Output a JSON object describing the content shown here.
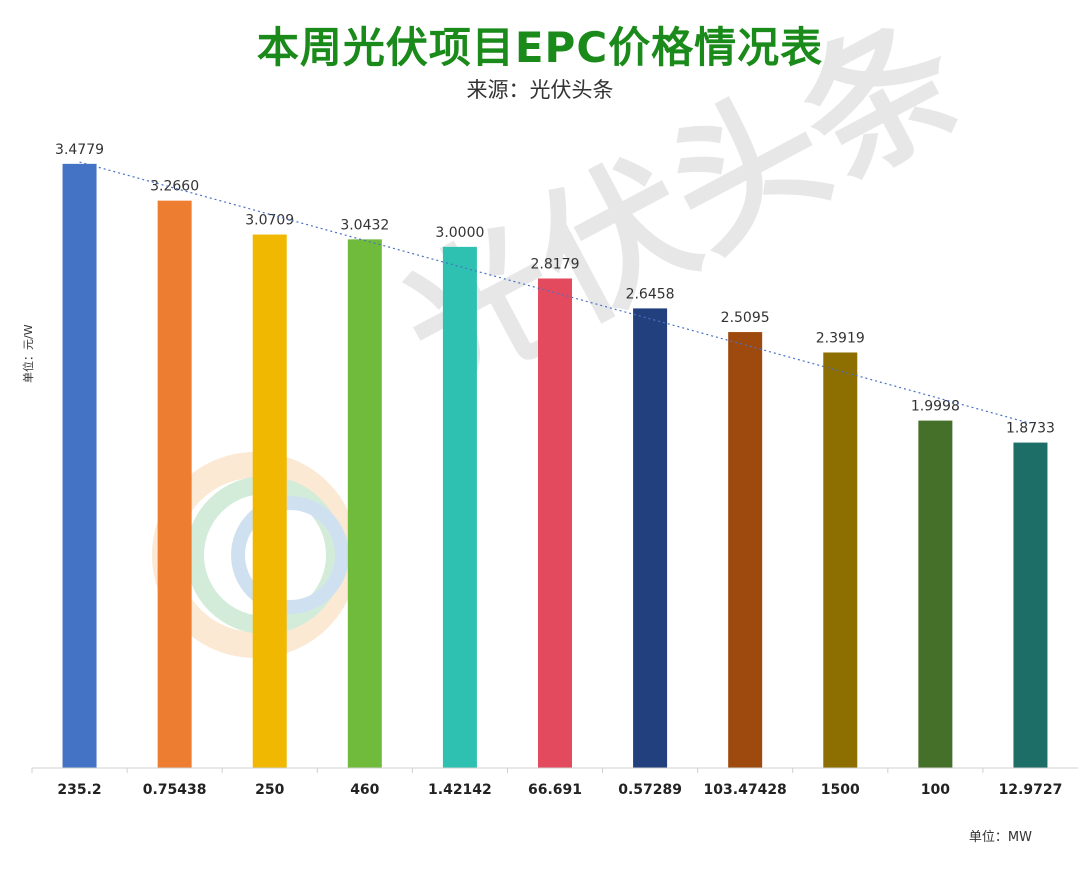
{
  "title": "本周光伏项目EPC价格情况表",
  "subtitle": "来源：光伏头条",
  "ylabel": "单位：元/W",
  "unit_label": "单位：MW",
  "watermark": "光伏头条",
  "colors": {
    "title": "#1a8a1a",
    "trendline": "#4a72c4",
    "axis": "#d0d0d0"
  },
  "chart_data": {
    "type": "bar",
    "title": "本周光伏项目EPC价格情况表",
    "categories": [
      "235.2",
      "0.75438",
      "250",
      "460",
      "1.42142",
      "66.691",
      "0.57289",
      "103.47428",
      "1500",
      "100",
      "12.9727"
    ],
    "values": [
      3.4779,
      3.266,
      3.0709,
      3.0432,
      3.0,
      2.8179,
      2.6458,
      2.5095,
      2.3919,
      1.9998,
      1.8733
    ],
    "data_labels": [
      "3.4779",
      "3.2660",
      "3.0709",
      "3.0432",
      "3.0000",
      "2.8179",
      "2.6458",
      "2.5095",
      "2.3919",
      "1.9998",
      "1.8733"
    ],
    "bar_colors": [
      "#4472c4",
      "#ed7d31",
      "#f0b800",
      "#70bb3c",
      "#2ec0b0",
      "#e44a5e",
      "#22407e",
      "#9e4a0e",
      "#8d6e00",
      "#44702a",
      "#1c6e66"
    ],
    "ylim": [
      0,
      3.5
    ],
    "trendline": "linear",
    "grid": false
  }
}
